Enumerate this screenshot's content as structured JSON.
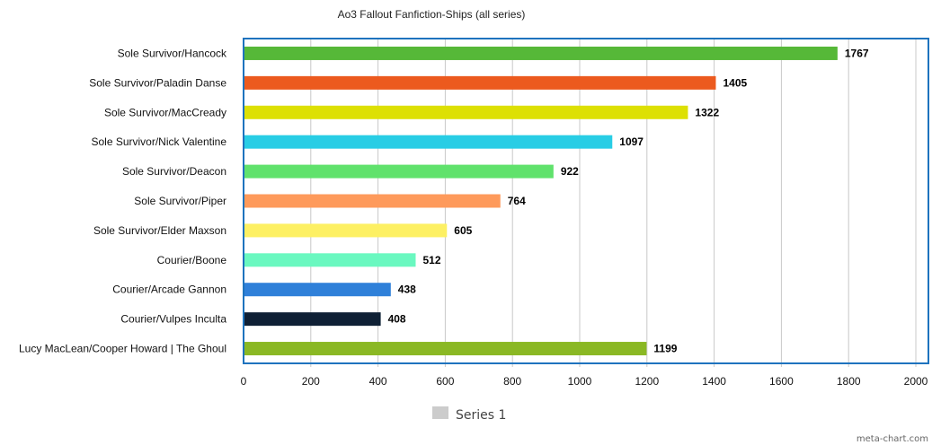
{
  "chart_data": {
    "type": "bar",
    "orientation": "horizontal",
    "title": "Ao3 Fallout Fanfiction-Ships (all series)",
    "categories": [
      "Sole Survivor/Hancock",
      "Sole Survivor/Paladin Danse",
      "Sole Survivor/MacCready",
      "Sole Survivor/Nick Valentine",
      "Sole Survivor/Deacon",
      "Sole Survivor/Piper",
      "Sole Survivor/Elder Maxson",
      "Courier/Boone",
      "Courier/Arcade Gannon",
      "Courier/Vulpes Inculta",
      "Lucy MacLean/Cooper Howard | The Ghoul"
    ],
    "series": [
      {
        "name": "Series 1",
        "values": [
          1767,
          1405,
          1322,
          1097,
          922,
          764,
          605,
          512,
          438,
          408,
          1199
        ],
        "colors": [
          "#56b838",
          "#ec5a1e",
          "#dde003",
          "#28cde5",
          "#60e26c",
          "#fe9a5b",
          "#fdf063",
          "#6af8c0",
          "#2f80d9",
          "#0f2035",
          "#8ab824"
        ]
      }
    ],
    "xlim": [
      0,
      2000
    ],
    "x_ticks": [
      0,
      200,
      400,
      600,
      800,
      1000,
      1200,
      1400,
      1600,
      1800,
      2000
    ],
    "grid": true,
    "legend": {
      "position": "bottom",
      "entries": [
        "Series 1"
      ],
      "swatch_color": "#cccccc"
    },
    "plot_border_color": "#1e73be",
    "grid_color": "#c8c8c8",
    "credit": "meta-chart.com"
  }
}
